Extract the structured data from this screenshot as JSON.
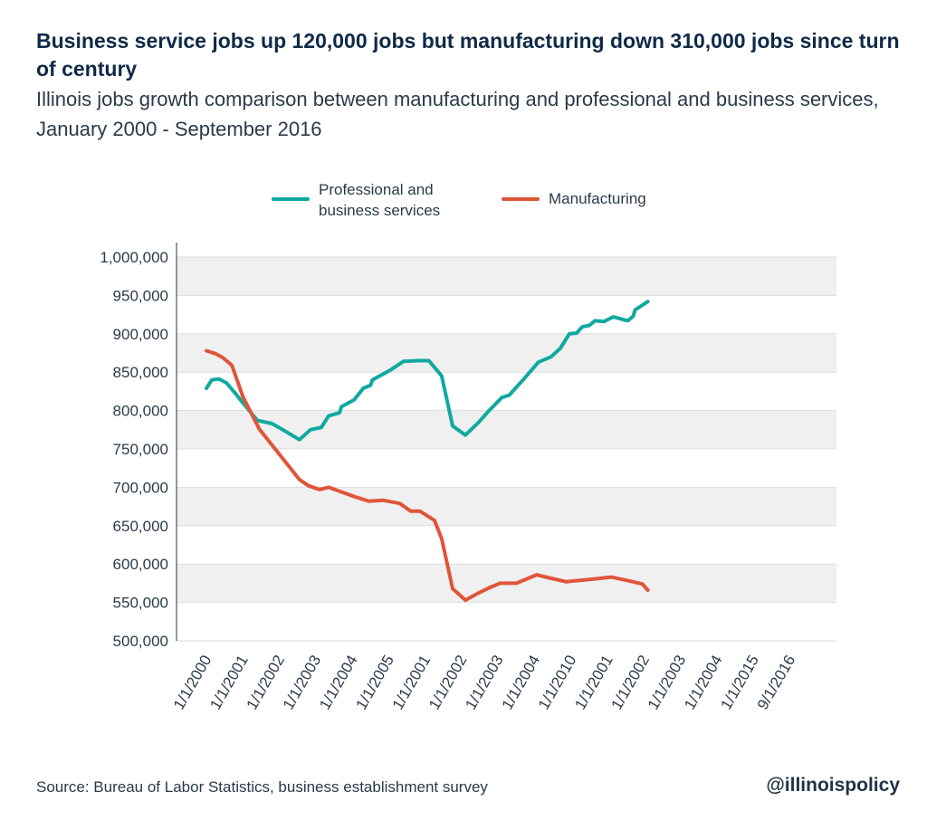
{
  "chart_data": {
    "type": "line",
    "title": "Business service jobs up 120,000 jobs but manufacturing down 310,000 jobs since turn of century",
    "subtitle": "Illinois jobs growth comparison between manufacturing and professional and business services, January 2000 - September 2016",
    "xlabel": "",
    "ylabel": "",
    "ylim": [
      500000,
      1000000
    ],
    "yticks": [
      "500,000",
      "550,000",
      "600,000",
      "650,000",
      "700,000",
      "750,000",
      "800,000",
      "850,000",
      "900,000",
      "950,000",
      "1,000,000"
    ],
    "xticks": [
      "1/1/2000",
      "1/1/2001",
      "1/1/2002",
      "1/1/2003",
      "1/1/2004",
      "1/1/2005",
      "1/1/2001",
      "1/1/2002",
      "1/1/2003",
      "1/1/2004",
      "1/1/2010",
      "1/1/2001",
      "1/1/2002",
      "1/1/2003",
      "1/1/2004",
      "1/1/2015",
      "9/1/2016"
    ],
    "grid": true,
    "legend_position": "top",
    "series": [
      {
        "name": "Professional and business services",
        "color": "#10a9a0",
        "points": [
          [
            0,
            829000
          ],
          [
            0.15,
            840000
          ],
          [
            0.35,
            841000
          ],
          [
            0.55,
            836000
          ],
          [
            0.8,
            822000
          ],
          [
            1.0,
            810000
          ],
          [
            1.4,
            787000
          ],
          [
            1.8,
            783000
          ],
          [
            2.2,
            772000
          ],
          [
            2.55,
            762000
          ],
          [
            2.85,
            775000
          ],
          [
            3.15,
            778000
          ],
          [
            3.35,
            793000
          ],
          [
            3.65,
            797000
          ],
          [
            3.7,
            805000
          ],
          [
            4.05,
            814000
          ],
          [
            4.3,
            829000
          ],
          [
            4.5,
            833000
          ],
          [
            4.55,
            840000
          ],
          [
            5.05,
            853000
          ],
          [
            5.4,
            864000
          ],
          [
            5.8,
            865000
          ],
          [
            6.1,
            865000
          ],
          [
            6.45,
            845000
          ],
          [
            6.75,
            780000
          ],
          [
            7.1,
            768000
          ],
          [
            7.45,
            784000
          ],
          [
            7.75,
            800000
          ],
          [
            8.1,
            817000
          ],
          [
            8.3,
            820000
          ],
          [
            8.7,
            841000
          ],
          [
            9.1,
            863000
          ],
          [
            9.45,
            870000
          ],
          [
            9.7,
            881000
          ],
          [
            9.95,
            900000
          ],
          [
            10.15,
            901000
          ],
          [
            10.3,
            909000
          ],
          [
            10.5,
            911000
          ],
          [
            10.65,
            917000
          ],
          [
            10.9,
            916000
          ],
          [
            11.15,
            922000
          ],
          [
            11.55,
            917000
          ],
          [
            11.7,
            923000
          ],
          [
            11.75,
            931000
          ],
          [
            12.1,
            942000
          ]
        ]
      },
      {
        "name": "Manufacturing",
        "color": "#e0553a",
        "points": [
          [
            0,
            878000
          ],
          [
            0.25,
            874000
          ],
          [
            0.45,
            869000
          ],
          [
            0.7,
            859000
          ],
          [
            1.0,
            818000
          ],
          [
            1.45,
            776000
          ],
          [
            1.8,
            755000
          ],
          [
            2.2,
            731000
          ],
          [
            2.55,
            710000
          ],
          [
            2.8,
            702000
          ],
          [
            3.1,
            697000
          ],
          [
            3.35,
            700000
          ],
          [
            3.7,
            694000
          ],
          [
            4.05,
            688000
          ],
          [
            4.45,
            682000
          ],
          [
            4.85,
            683000
          ],
          [
            5.3,
            679000
          ],
          [
            5.6,
            669000
          ],
          [
            5.85,
            669000
          ],
          [
            6.25,
            657000
          ],
          [
            6.45,
            633000
          ],
          [
            6.75,
            568000
          ],
          [
            7.1,
            553000
          ],
          [
            7.45,
            562000
          ],
          [
            7.75,
            569000
          ],
          [
            8.05,
            575000
          ],
          [
            8.5,
            575000
          ],
          [
            9.05,
            586000
          ],
          [
            9.4,
            582000
          ],
          [
            9.85,
            577000
          ],
          [
            10.5,
            580000
          ],
          [
            11.1,
            583000
          ],
          [
            11.6,
            578000
          ],
          [
            11.95,
            574000
          ],
          [
            12.1,
            566000
          ]
        ]
      }
    ]
  },
  "footer": {
    "source": "Source: Bureau of Labor Statistics, business establishment survey",
    "handle": "@illinoispolicy"
  }
}
